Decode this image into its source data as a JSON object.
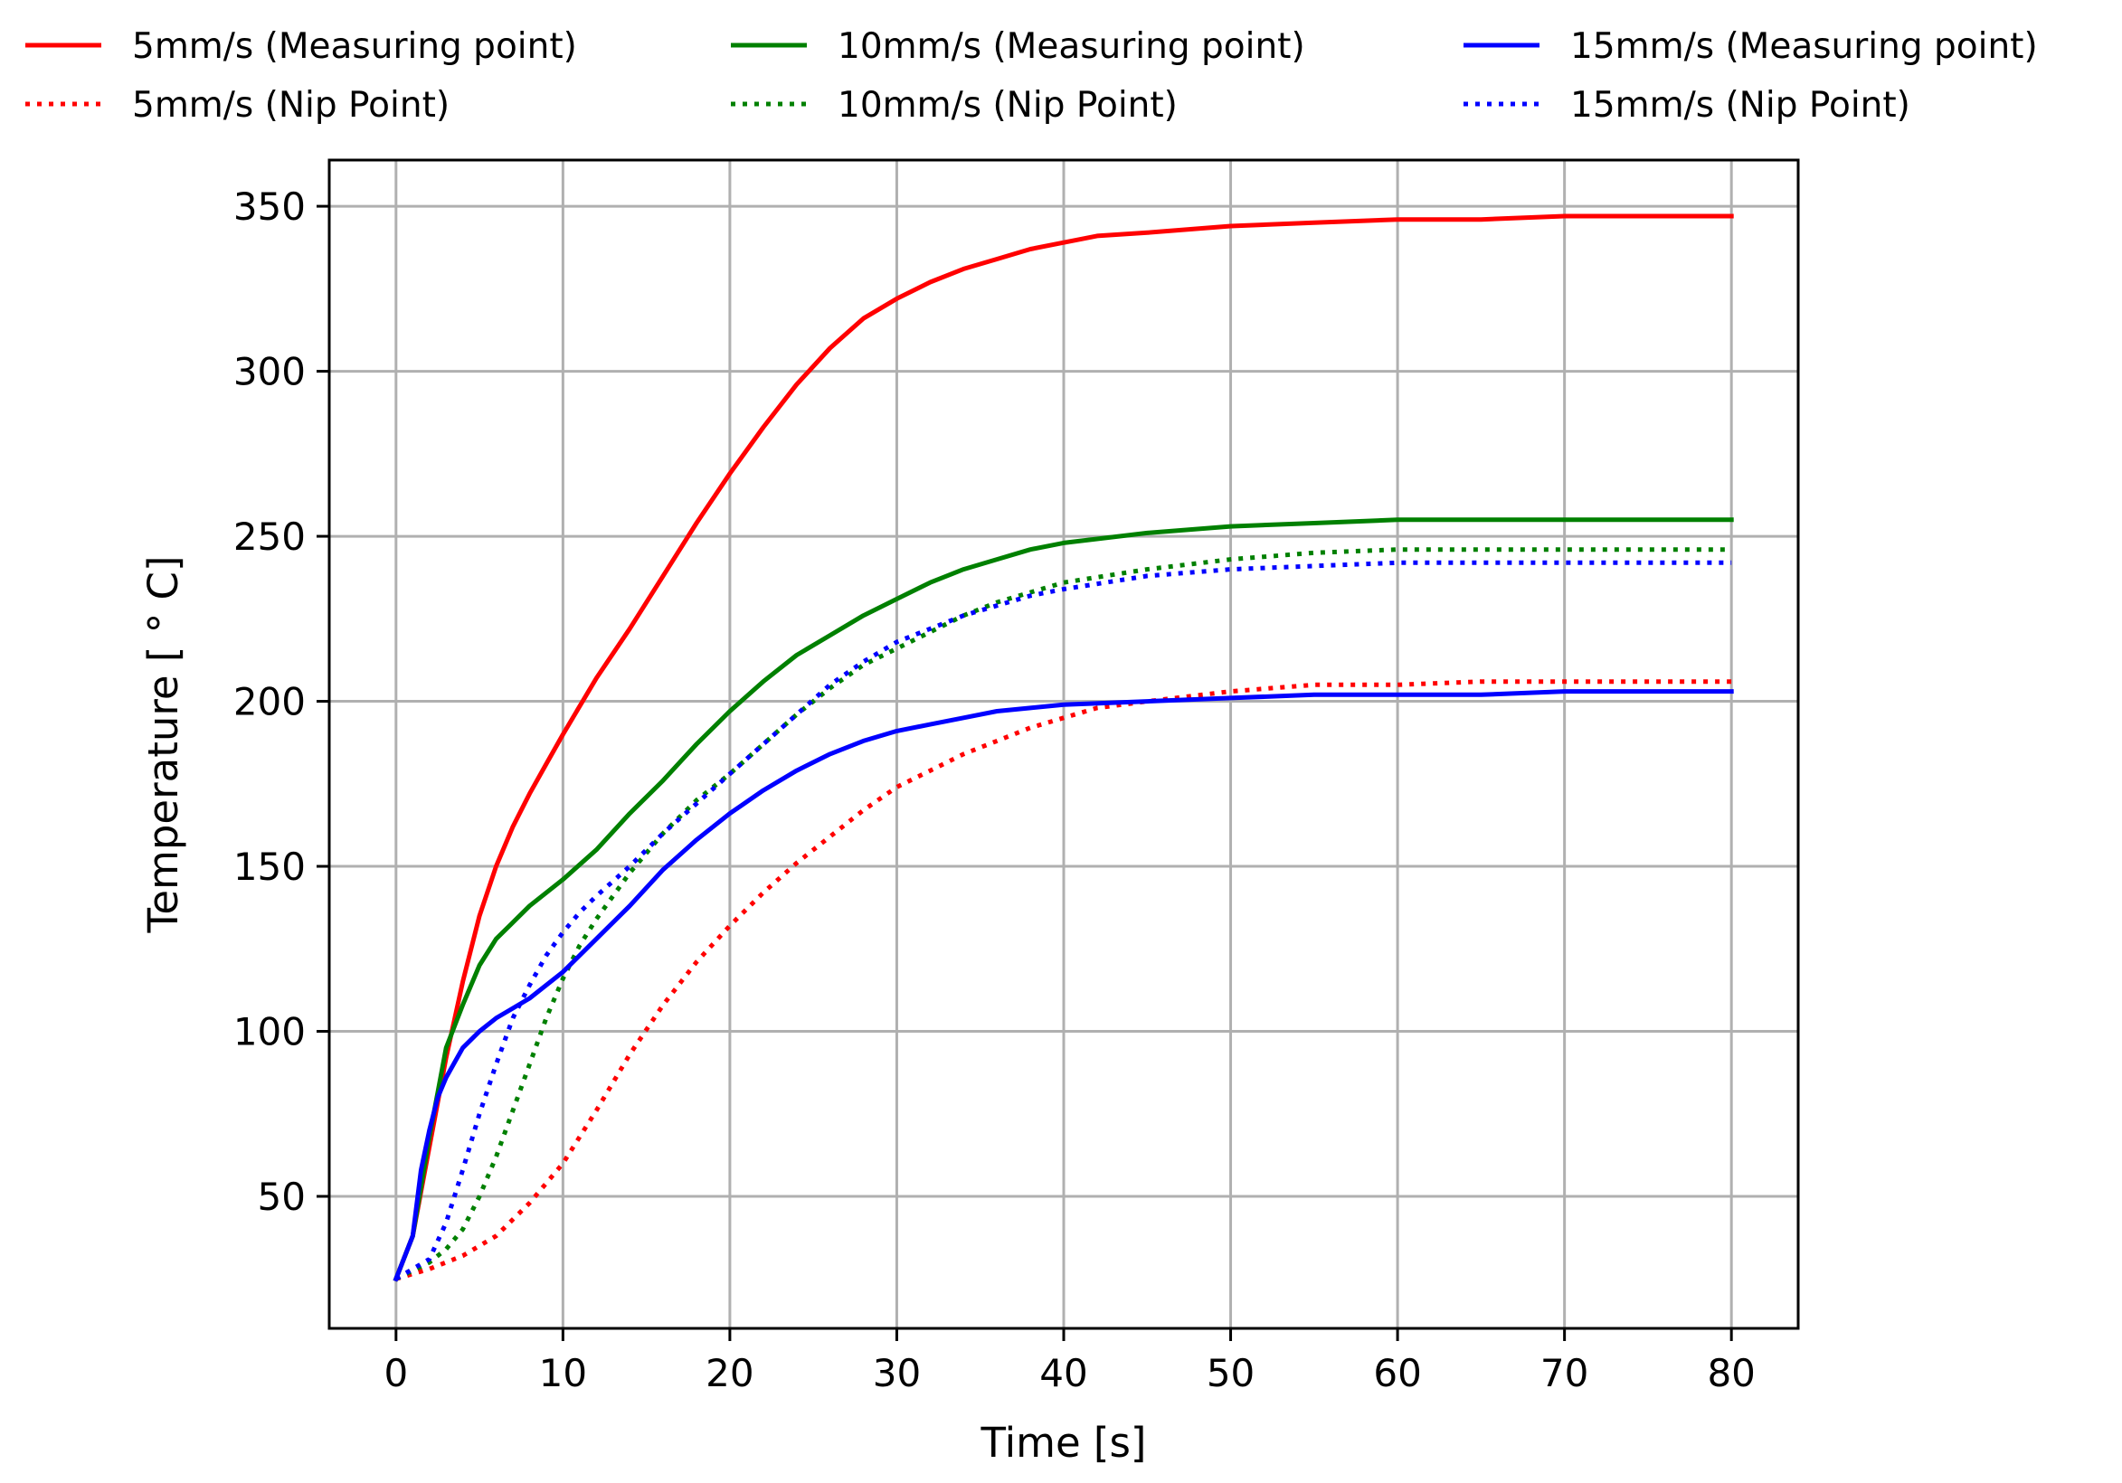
{
  "chart_data": {
    "type": "line",
    "xlabel": "Time [s]",
    "ylabel": "Temperature [$^\\circ$C]",
    "ylabel_display": "Temperature [ ° C]",
    "xlim": [
      -4,
      84
    ],
    "ylim": [
      10,
      364
    ],
    "xticks": [
      0,
      10,
      20,
      30,
      40,
      50,
      60,
      70,
      80
    ],
    "yticks": [
      50,
      100,
      150,
      200,
      250,
      300,
      350
    ],
    "grid": true,
    "legend_position": "top, outside plot, 3 columns",
    "series": [
      {
        "name": "5mm/s (Measuring point)",
        "color": "#ff0000",
        "linestyle": "solid",
        "x": [
          0,
          1,
          2,
          3,
          4,
          5,
          6,
          7,
          8,
          9,
          10,
          12,
          14,
          16,
          18,
          20,
          22,
          24,
          26,
          28,
          30,
          32,
          34,
          36,
          38,
          40,
          42,
          45,
          50,
          55,
          60,
          65,
          70,
          75,
          80
        ],
        "y": [
          25,
          38,
          65,
          92,
          115,
          135,
          150,
          162,
          172,
          181,
          190,
          207,
          222,
          238,
          254,
          269,
          283,
          296,
          307,
          316,
          322,
          327,
          331,
          334,
          337,
          339,
          341,
          342,
          344,
          345,
          346,
          346,
          347,
          347,
          347
        ]
      },
      {
        "name": "5mm/s (Nip Point)",
        "color": "#ff0000",
        "linestyle": "dotted",
        "x": [
          0,
          2,
          4,
          6,
          8,
          10,
          12,
          14,
          16,
          18,
          20,
          22,
          24,
          26,
          28,
          30,
          32,
          34,
          36,
          38,
          40,
          42,
          45,
          50,
          55,
          60,
          65,
          70,
          75,
          80
        ],
        "y": [
          25,
          28,
          32,
          38,
          48,
          60,
          76,
          93,
          108,
          121,
          132,
          142,
          151,
          159,
          167,
          174,
          179,
          184,
          188,
          192,
          195,
          198,
          200,
          203,
          205,
          205,
          206,
          206,
          206,
          206
        ]
      },
      {
        "name": "10mm/s (Measuring point)",
        "color": "#008000",
        "linestyle": "solid",
        "x": [
          0,
          1,
          2,
          3,
          4,
          5,
          6,
          7,
          8,
          10,
          12,
          14,
          16,
          18,
          20,
          22,
          24,
          26,
          28,
          30,
          32,
          34,
          36,
          38,
          40,
          45,
          50,
          55,
          60,
          65,
          70,
          75,
          80
        ],
        "y": [
          25,
          38,
          68,
          95,
          108,
          120,
          128,
          133,
          138,
          146,
          155,
          166,
          176,
          187,
          197,
          206,
          214,
          220,
          226,
          231,
          236,
          240,
          243,
          246,
          248,
          251,
          253,
          254,
          255,
          255,
          255,
          255,
          255
        ]
      },
      {
        "name": "10mm/s (Nip Point)",
        "color": "#008000",
        "linestyle": "dotted",
        "x": [
          0,
          2,
          3,
          4,
          5,
          6,
          7,
          8,
          9,
          10,
          11,
          12,
          14,
          16,
          18,
          20,
          22,
          24,
          26,
          28,
          30,
          32,
          34,
          36,
          38,
          40,
          45,
          50,
          55,
          60,
          65,
          70,
          75,
          80
        ],
        "y": [
          25,
          30,
          34,
          40,
          50,
          62,
          76,
          90,
          104,
          116,
          126,
          134,
          148,
          160,
          170,
          178,
          187,
          196,
          204,
          211,
          216,
          221,
          226,
          230,
          233,
          236,
          240,
          243,
          245,
          246,
          246,
          246,
          246,
          246
        ]
      },
      {
        "name": "15mm/s (Measuring point)",
        "color": "#0000ff",
        "linestyle": "solid",
        "x": [
          0,
          1,
          1.5,
          2,
          2.5,
          3,
          4,
          5,
          6,
          7,
          8,
          10,
          12,
          14,
          16,
          18,
          20,
          22,
          24,
          26,
          28,
          30,
          32,
          34,
          36,
          38,
          40,
          45,
          50,
          55,
          60,
          65,
          70,
          75,
          80
        ],
        "y": [
          25,
          38,
          58,
          70,
          80,
          86,
          95,
          100,
          104,
          107,
          110,
          118,
          128,
          138,
          149,
          158,
          166,
          173,
          179,
          184,
          188,
          191,
          193,
          195,
          197,
          198,
          199,
          200,
          201,
          202,
          202,
          202,
          203,
          203,
          203
        ]
      },
      {
        "name": "15mm/s (Nip Point)",
        "color": "#0000ff",
        "linestyle": "dotted",
        "x": [
          0,
          2,
          3,
          4,
          5,
          6,
          7,
          8,
          9,
          10,
          11,
          12,
          14,
          16,
          18,
          20,
          22,
          24,
          26,
          28,
          30,
          32,
          34,
          36,
          38,
          40,
          45,
          50,
          55,
          60,
          65,
          70,
          75,
          80
        ],
        "y": [
          25,
          31,
          42,
          58,
          75,
          90,
          104,
          114,
          123,
          130,
          136,
          141,
          150,
          160,
          169,
          178,
          187,
          196,
          205,
          212,
          218,
          222,
          226,
          229,
          232,
          234,
          238,
          240,
          241,
          242,
          242,
          242,
          242,
          242
        ]
      }
    ]
  }
}
